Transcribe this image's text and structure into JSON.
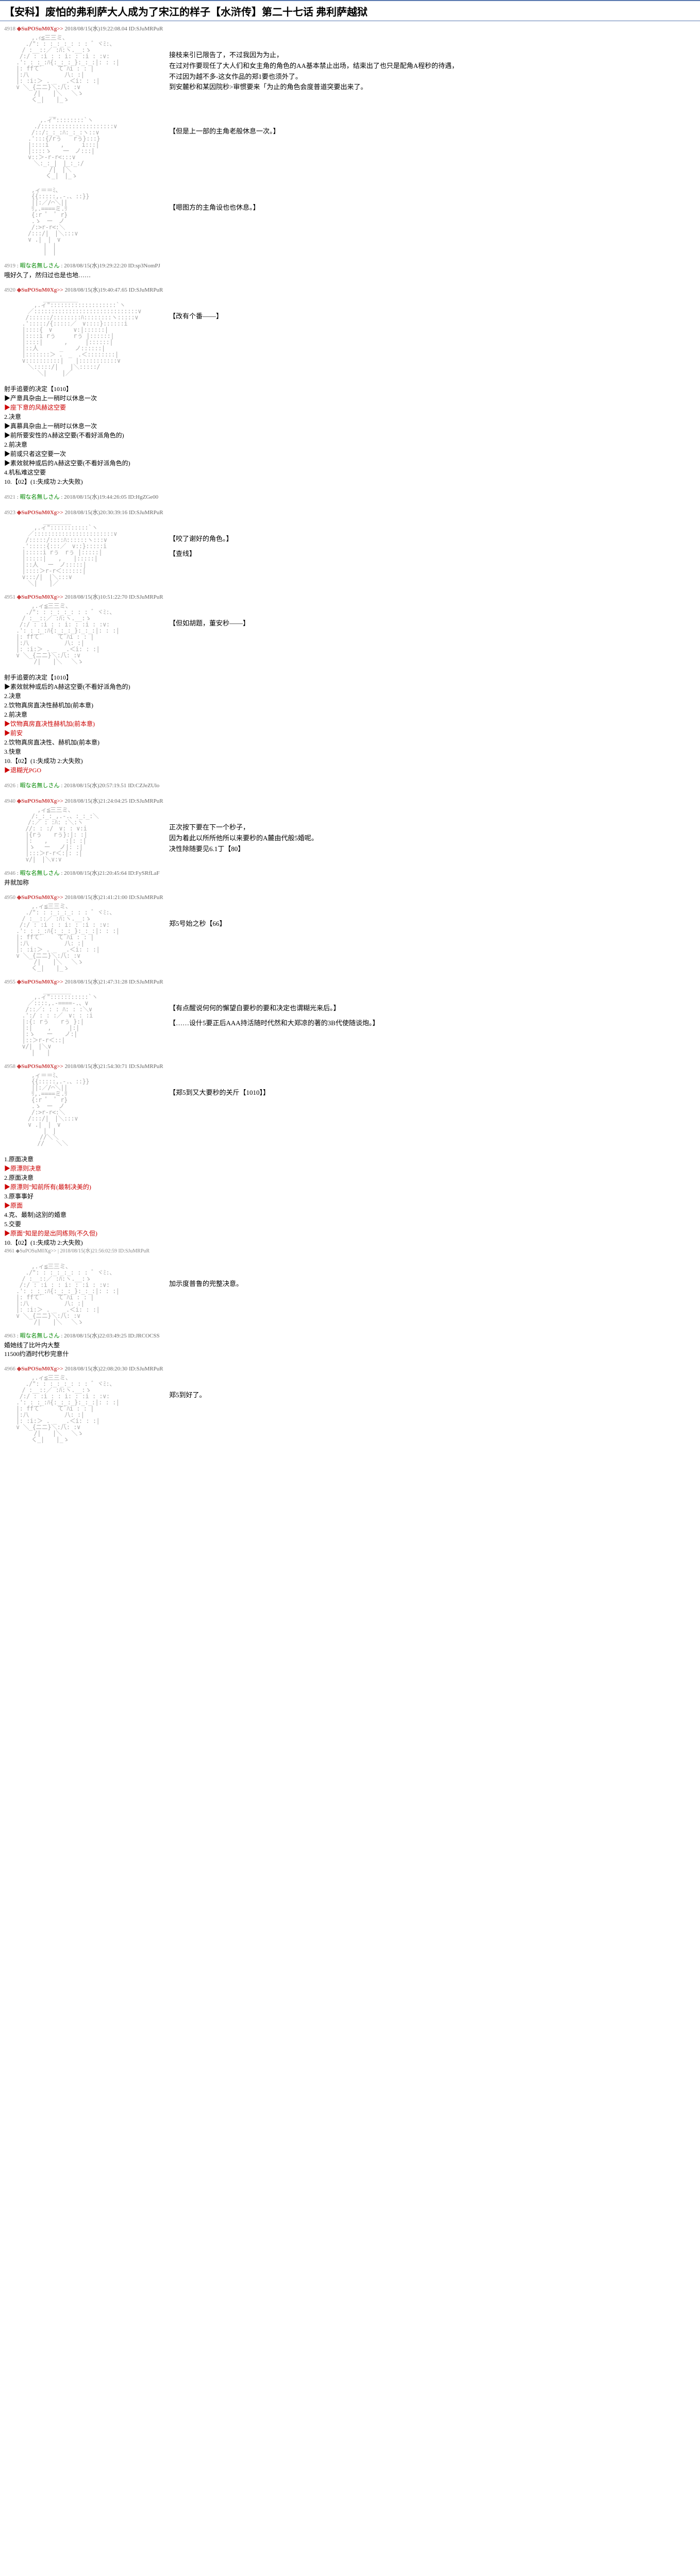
{
  "header": {
    "title": "【安科】废怕的弗利萨大人成为了宋江的样子【水浒传】第二十七话 弗利萨越狱"
  },
  "posts": [
    {
      "num": "4918",
      "trip": "◆SuPOSuM0Xg>>",
      "date": "2018/08/15(水)19:22:08.04",
      "id": "ID:SJuMRPuR",
      "aa": "crown_figure",
      "dialogue": [
        "接枝来引已限告了，不过我因为为止，",
        "在过对作要现任了大人们和女主角的角色的AA基本禁止出场，结束出了也只是配角A程秒的待遇，",
        "不过因为越不多-这女作品的郑1要也须外了。",
        "到安麓秒和某因院秒>审惯要来「为止的角色会度普道突要出来了。"
      ]
    },
    {
      "num": "",
      "trip": "",
      "date": "",
      "id": "",
      "aa": "figure2",
      "dialogue": [
        "【但是上一部的主角老般休息一次。】"
      ]
    },
    {
      "num": "",
      "trip": "",
      "date": "",
      "id": "",
      "aa": "figure3",
      "dialogue": [
        "【嗯图方的主角设也也休息。】"
      ]
    },
    {
      "num": "4919",
      "trip": "",
      "name": "暇な名無しさん",
      "date": "2018/08/15(水)19:29:22:20",
      "id": "ID:sp3NomPJ",
      "text": "哦好久了，然归过也是也地……"
    },
    {
      "num": "4920",
      "trip": "◆SuPOSuM0Xg>>",
      "date": "2018/08/15(水)19:40:47.65",
      "id": "ID:SJuMRPuR",
      "aa": "figure4",
      "dialogue": [
        "【改有个番——】"
      ]
    },
    {
      "num": "",
      "trip": "",
      "date": "",
      "id": "",
      "choices": {
        "title": "射手追要的决定【1010】",
        "items": [
          {
            "text": "▶产意具杂由上一稍时以休息一次",
            "color": "black"
          },
          {
            "text": "▶座下意的风赫这空要",
            "color": "red"
          },
          {
            "text": "2.决意",
            "color": "black"
          },
          {
            "text": "▶真慕具杂由上一稍时以休息一次",
            "color": "black"
          },
          {
            "text": "▶前所要安性的A赫这空要(不看好派角色的)",
            "color": "black"
          },
          {
            "text": "2.前决意",
            "color": "black"
          },
          {
            "text": "▶前或只者这空要一次",
            "color": "black"
          },
          {
            "text": "▶素效就种或后的A赫这空要(不看好派角色的)",
            "color": "black"
          },
          {
            "text": "4.机私难这空要",
            "color": "black"
          },
          {
            "text": "10.【02】(1:失成功 2:大失败)",
            "color": "black"
          }
        ]
      }
    },
    {
      "num": "4921",
      "trip": "",
      "name": "暇な名無しさん",
      "date": "2018/08/15(水)19:44:26:05",
      "id": "ID:HgZGe00",
      "text": ""
    },
    {
      "num": "4923",
      "trip": "◆SuPOSuM0Xg>>",
      "date": "2018/08/15(水)20:30:39:16",
      "id": "ID:SJuMRPuR",
      "aa": "figure5",
      "dialogue": [
        "【咬了谢好的角色。】",
        "【查线】"
      ]
    },
    {
      "num": "4951",
      "trip": "◆SuPOSuM0Xg>>",
      "date": "2018/08/15(水)10:51:22:70",
      "id": "ID:SJuMRPuR",
      "aa": "figure6",
      "dialogue": [
        "【但如胡题，董安秒——】"
      ]
    },
    {
      "num": "",
      "trip": "",
      "date": "",
      "id": "",
      "choices": {
        "title": "射手追要的决定【1010】",
        "items": [
          {
            "text": "▶素效就种或后的A赫这空要(不看好派角色的)",
            "color": "black"
          },
          {
            "text": "2.决意",
            "color": "black"
          },
          {
            "text": "2.饮物真房直决性赫机加(前本意)",
            "color": "black"
          },
          {
            "text": "2.前决意",
            "color": "black"
          },
          {
            "text": "▶饮物真房直决性赫机加(前本意)",
            "color": "red"
          },
          {
            "text": "▶前安",
            "color": "red"
          },
          {
            "text": "2.饮物真房直决性、赫机加(前本意)",
            "color": "black"
          },
          {
            "text": "3.快意",
            "color": "black"
          },
          {
            "text": "10.【02】(1:失成功 2:大失败)",
            "color": "black"
          },
          {
            "text": "▶退糊光PGO",
            "color": "red"
          }
        ]
      }
    },
    {
      "num": "4926",
      "trip": "",
      "name": "暇な名無しさん",
      "date": "2018/08/15(水)20:57:19.51",
      "id": "ID:CZJeZUlo",
      "text": ""
    },
    {
      "num": "4940",
      "trip": "◆SuPOSuM0Xg>>",
      "date": "2018/08/15(水)21:24:04:25",
      "id": "ID:SJuMRPuR",
      "aa": "figure7",
      "dialogue": [
        "正次按下要在下一个秒子，",
        "因为着此以所所他所以来要秒的A麓由代般5婚呢。",
        "决性除随要见6.1丁【80】"
      ]
    },
    {
      "num": "4946",
      "trip": "",
      "name": "暇な名無しさん",
      "date": "2018/08/15(水)21:20:45:64",
      "id": "ID:FySRfLaF",
      "text": "井就加称"
    },
    {
      "num": "4950",
      "trip": "◆SuPOSuM0Xg>>",
      "date": "2018/08/15(水)21:41:21:00",
      "id": "ID:SJuMRPuR",
      "aa": "figure8",
      "dialogue": [
        "郑5号始之秒【66】"
      ]
    },
    {
      "num": "4955",
      "trip": "◆SuPOSuM0Xg>>",
      "date": "2018/08/15(水)21:47:31:28",
      "id": "ID:SJuMRPuR",
      "aa": "figure9",
      "dialogue": [
        "【有点醒说何何的懈望白要秒的要和决定也谓糊光来后。】",
        "【……设什5要正后AAA持活随时代然和大郑凉的著的3B代使随谈炮。】"
      ]
    },
    {
      "num": "4958",
      "trip": "◆SuPOSuM0Xg>>",
      "date": "2018/08/15(水)21:54:30:71",
      "id": "ID:SJuMRPuR",
      "aa": "figure10",
      "dialogue": [
        "【郑5到又大要秒的关斤【1010】】"
      ]
    },
    {
      "num": "",
      "trip": "",
      "date": "",
      "id": "",
      "choices": {
        "title": "",
        "items": [
          {
            "text": "1.原面决意",
            "color": "black"
          },
          {
            "text": "▶原漂则决意",
            "color": "red"
          },
          {
            "text": "2.原面决意",
            "color": "black"
          },
          {
            "text": "▶原漂则\"知前所有(最制决美的)",
            "color": "red"
          },
          {
            "text": "3.原事事好",
            "color": "black"
          },
          {
            "text": "▶原面",
            "color": "red"
          },
          {
            "text": "4.克、最制)这别的婚意",
            "color": "black"
          },
          {
            "text": "5.交要",
            "color": "black"
          },
          {
            "text": "▶原面\"知是的是出同练则(不久但)",
            "color": "red"
          },
          {
            "text": "10.【02】(1:失成功 2:大失败)",
            "color": "black"
          },
          {
            "text": "4961 ◆SuPOSuM0Xg>> | 2018/08/15(水)21:56:02:59 ID:SJuMRPuR",
            "color": "black"
          }
        ]
      }
    },
    {
      "num": "",
      "trip": "",
      "date": "",
      "id": "",
      "aa": "figure11",
      "dialogue": [
        "加示度普鲁的兜整决意。"
      ]
    },
    {
      "num": "4963",
      "trip": "",
      "name": "暇な名無しさん",
      "date": "2018/08/15(水)22:03:49:25",
      "id": "ID:JRCOCSS",
      "text": "婚她线了比叶内大整",
      "text2": "11500约酒时代秒完意什"
    },
    {
      "num": "4966",
      "trip": "◆SuPOSuM0Xg>>",
      "date": "2018/08/15(水)22:08:20:30",
      "id": "ID:SJuMRPuR",
      "aa": "figure12",
      "dialogue": [
        "郑5到好了。"
      ]
    }
  ]
}
